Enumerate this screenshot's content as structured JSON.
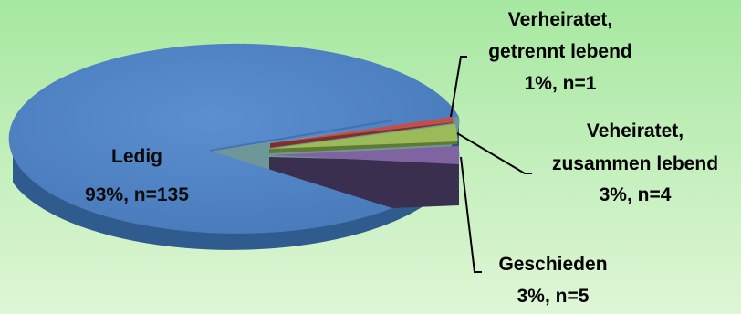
{
  "chart_data": {
    "type": "pie",
    "title": "",
    "slices": [
      {
        "label": "Ledig",
        "value_text": "93%, n=135",
        "percent": 93,
        "n": 135,
        "color": "#4f81bd"
      },
      {
        "label": "Verheiratet, getrennt lebend",
        "label_lines": [
          "Verheiratet,",
          "getrennt lebend"
        ],
        "value_text": "1%, n=1",
        "percent": 1,
        "n": 1,
        "color": "#c0504d"
      },
      {
        "label": "Veheiratet, zusammen lebend",
        "label_lines": [
          "Veheiratet,",
          "zusammen lebend"
        ],
        "value_text": "3%, n=4",
        "percent": 3,
        "n": 4,
        "color": "#9bbb59"
      },
      {
        "label": "Geschieden",
        "label_lines": [
          "Geschieden"
        ],
        "value_text": "3%, n=5",
        "percent": 3,
        "n": 5,
        "color": "#8064a2"
      }
    ],
    "background": {
      "top": "#a6e8a0",
      "bottom": "#dff6d6"
    }
  }
}
